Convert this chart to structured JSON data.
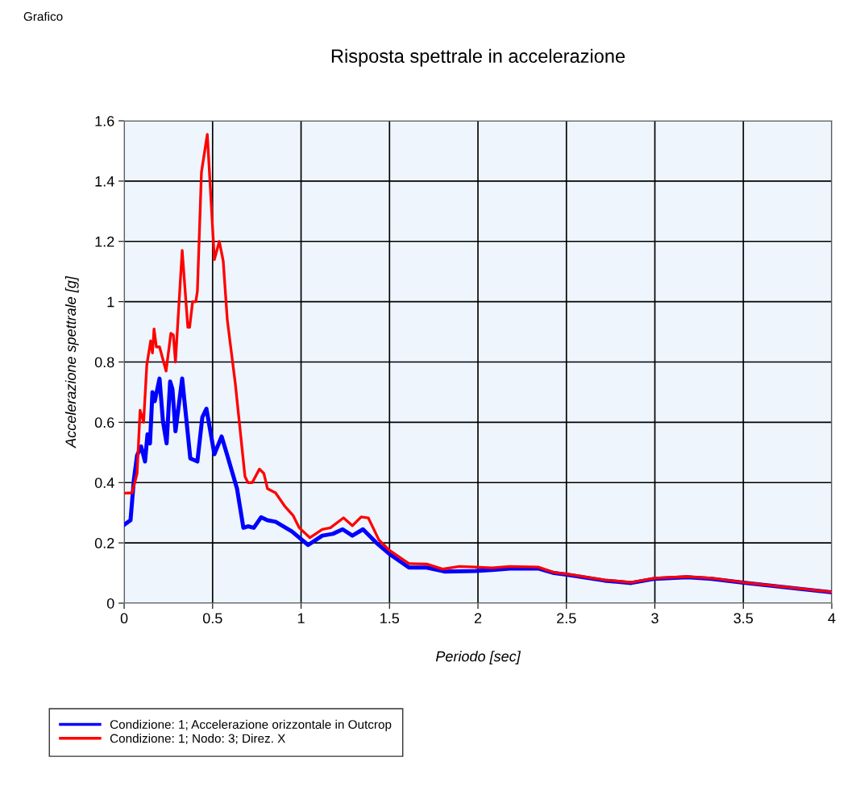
{
  "chart_data": {
    "type": "line",
    "title": "Risposta spettrale in accelerazione",
    "xlabel": "Periodo [sec]",
    "ylabel": "Accelerazione spettrale [g]",
    "annotations": [
      "Grafico"
    ],
    "xlim": [
      0,
      4
    ],
    "ylim": [
      0,
      1.6
    ],
    "xticks": [
      0,
      0.5,
      1,
      1.5,
      2,
      2.5,
      3,
      3.5,
      4
    ],
    "yticks": [
      0,
      0.2,
      0.4,
      0.6,
      0.8,
      1,
      1.2,
      1.4,
      1.6
    ],
    "grid": true,
    "legend": "bottom left",
    "marker": "none",
    "line_style": "solid",
    "series": [
      {
        "name": "Condizione: 1; Accelerazione orizzontale in Outcrop",
        "color": "#0000ff",
        "x": [
          0,
          0.036,
          0.055,
          0.073,
          0.096,
          0.118,
          0.132,
          0.146,
          0.16,
          0.173,
          0.2,
          0.219,
          0.24,
          0.26,
          0.273,
          0.29,
          0.328,
          0.374,
          0.414,
          0.442,
          0.465,
          0.51,
          0.551,
          0.583,
          0.638,
          0.674,
          0.7,
          0.733,
          0.774,
          0.81,
          0.856,
          0.948,
          1.04,
          1.12,
          1.18,
          1.235,
          1.29,
          1.35,
          1.426,
          1.5,
          1.61,
          1.71,
          1.81,
          1.986,
          2.08,
          2.18,
          2.34,
          2.43,
          2.5,
          2.715,
          2.866,
          3.0,
          3.185,
          3.32,
          3.5,
          4.0
        ],
        "values": [
          0.26,
          0.275,
          0.41,
          0.49,
          0.52,
          0.47,
          0.56,
          0.53,
          0.7,
          0.67,
          0.745,
          0.605,
          0.53,
          0.735,
          0.71,
          0.57,
          0.745,
          0.48,
          0.47,
          0.617,
          0.645,
          0.494,
          0.553,
          0.49,
          0.38,
          0.25,
          0.255,
          0.25,
          0.285,
          0.275,
          0.27,
          0.238,
          0.193,
          0.224,
          0.23,
          0.245,
          0.224,
          0.245,
          0.2,
          0.163,
          0.118,
          0.118,
          0.105,
          0.107,
          0.11,
          0.115,
          0.115,
          0.1,
          0.095,
          0.075,
          0.067,
          0.081,
          0.086,
          0.081,
          0.068,
          0.036
        ]
      },
      {
        "name": "Condizione: 1; Nodo: 3; Direz. X",
        "color": "#ff0000",
        "x": [
          0,
          0.045,
          0.073,
          0.09,
          0.11,
          0.128,
          0.15,
          0.16,
          0.169,
          0.182,
          0.2,
          0.237,
          0.264,
          0.278,
          0.29,
          0.328,
          0.36,
          0.37,
          0.387,
          0.405,
          0.414,
          0.437,
          0.47,
          0.51,
          0.538,
          0.56,
          0.583,
          0.628,
          0.683,
          0.7,
          0.724,
          0.765,
          0.79,
          0.81,
          0.856,
          0.91,
          0.956,
          0.99,
          1.05,
          1.12,
          1.166,
          1.24,
          1.29,
          1.34,
          1.38,
          1.44,
          1.5,
          1.61,
          1.71,
          1.8,
          1.895,
          1.986,
          2.08,
          2.18,
          2.34,
          2.43,
          2.5,
          2.715,
          2.866,
          3.0,
          3.185,
          3.32,
          3.5,
          4.0
        ],
        "values": [
          0.365,
          0.366,
          0.43,
          0.64,
          0.6,
          0.79,
          0.87,
          0.83,
          0.91,
          0.85,
          0.85,
          0.77,
          0.895,
          0.89,
          0.8,
          1.17,
          0.915,
          0.915,
          1.0,
          1.0,
          1.035,
          1.43,
          1.555,
          1.14,
          1.2,
          1.135,
          0.94,
          0.73,
          0.42,
          0.4,
          0.4,
          0.445,
          0.43,
          0.38,
          0.366,
          0.32,
          0.29,
          0.25,
          0.217,
          0.245,
          0.25,
          0.283,
          0.257,
          0.286,
          0.283,
          0.21,
          0.175,
          0.131,
          0.13,
          0.113,
          0.122,
          0.12,
          0.117,
          0.122,
          0.12,
          0.102,
          0.097,
          0.077,
          0.069,
          0.083,
          0.088,
          0.083,
          0.069,
          0.037
        ]
      }
    ]
  }
}
